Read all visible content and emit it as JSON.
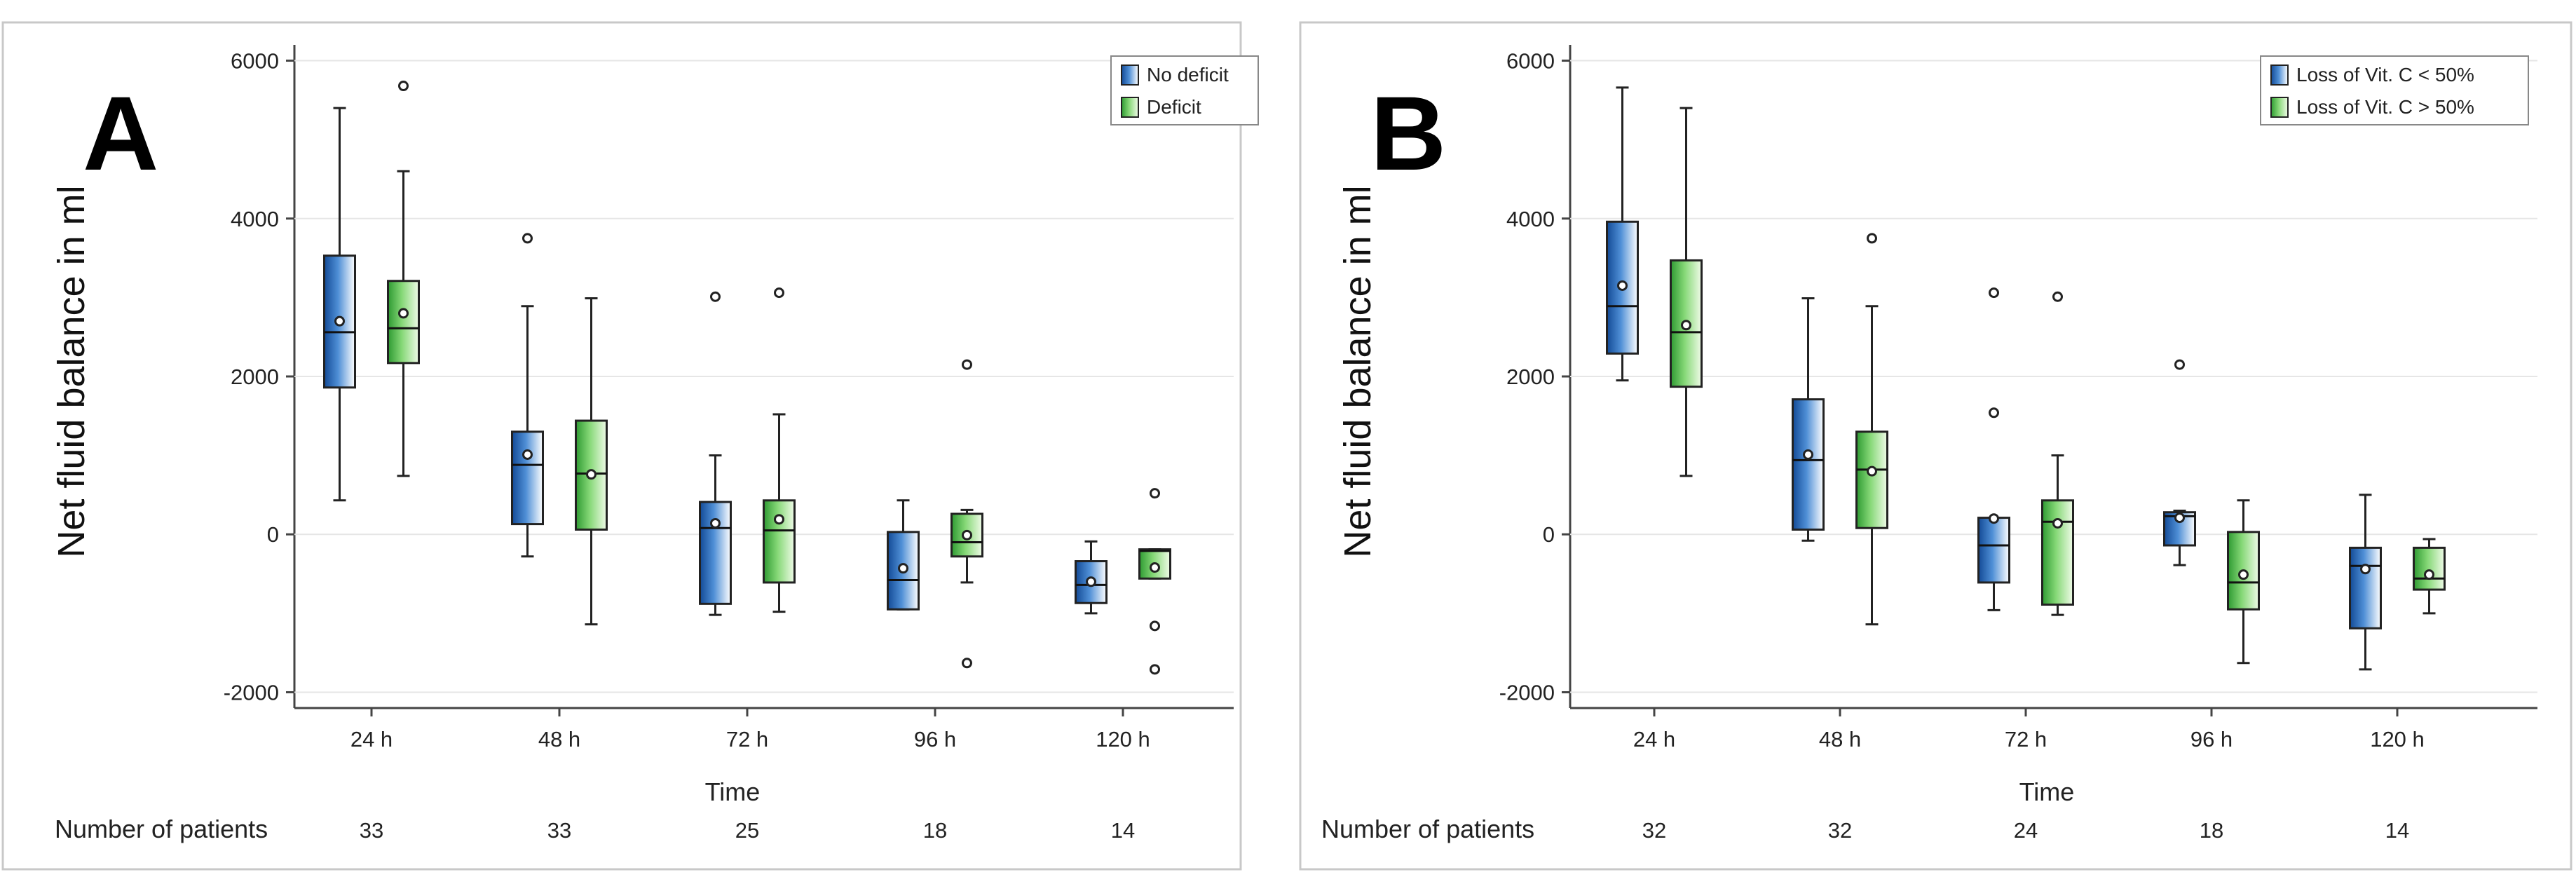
{
  "chart_data": [
    {
      "type": "box",
      "panel_label": "A",
      "xlabel": "Time",
      "ylabel": "Net fluid balance in ml",
      "ylim": [
        -2200,
        6200
      ],
      "yticks": [
        -2000,
        0,
        2000,
        4000,
        6000
      ],
      "categories": [
        "24 h",
        "48 h",
        "72 h",
        "96 h",
        "120 h"
      ],
      "count_label": "Number of patients",
      "counts": [
        33,
        33,
        25,
        18,
        14
      ],
      "grid": true,
      "legend_position": "top-right",
      "series": [
        {
          "name": "No deficit",
          "color": "#1f5fae",
          "boxes": [
            {
              "min": 430,
              "q1": 1860,
              "median": 2560,
              "q3": 3530,
              "max": 5400,
              "mean": 2700,
              "outliers": []
            },
            {
              "min": -280,
              "q1": 130,
              "median": 880,
              "q3": 1300,
              "max": 2890,
              "mean": 1010,
              "outliers": [
                3750
              ]
            },
            {
              "min": -1020,
              "q1": -880,
              "median": 80,
              "q3": 410,
              "max": 1000,
              "mean": 140,
              "outliers": [
                3010
              ]
            },
            {
              "min": -950,
              "q1": -950,
              "median": -580,
              "q3": 30,
              "max": 430,
              "mean": -430,
              "outliers": []
            },
            {
              "min": -1000,
              "q1": -870,
              "median": -640,
              "q3": -340,
              "max": -90,
              "mean": -600,
              "outliers": []
            }
          ]
        },
        {
          "name": "Deficit",
          "color": "#3fae3f",
          "boxes": [
            {
              "min": 740,
              "q1": 2170,
              "median": 2610,
              "q3": 3210,
              "max": 4600,
              "mean": 2800,
              "outliers": [
                5680
              ]
            },
            {
              "min": -1140,
              "q1": 60,
              "median": 770,
              "q3": 1440,
              "max": 2990,
              "mean": 760,
              "outliers": []
            },
            {
              "min": -980,
              "q1": -610,
              "median": 50,
              "q3": 430,
              "max": 1520,
              "mean": 190,
              "outliers": [
                3060
              ]
            },
            {
              "min": -610,
              "q1": -280,
              "median": -100,
              "q3": 260,
              "max": 310,
              "mean": -10,
              "outliers": [
                2150,
                -1630
              ]
            },
            {
              "min": -560,
              "q1": -560,
              "median": -210,
              "q3": -190,
              "max": -190,
              "mean": -420,
              "outliers": [
                520,
                -1160,
                -1710
              ]
            }
          ]
        }
      ]
    },
    {
      "type": "box",
      "panel_label": "B",
      "xlabel": "Time",
      "ylabel": "Net fluid balance in ml",
      "ylim": [
        -2200,
        6200
      ],
      "yticks": [
        -2000,
        0,
        2000,
        4000,
        6000
      ],
      "categories": [
        "24 h",
        "48 h",
        "72 h",
        "96 h",
        "120 h"
      ],
      "count_label": "Number of patients",
      "counts": [
        32,
        32,
        24,
        18,
        14
      ],
      "grid": true,
      "legend_position": "top-right",
      "series": [
        {
          "name": "Loss of Vit. C < 50%",
          "color": "#1f5fae",
          "boxes": [
            {
              "min": 1950,
              "q1": 2290,
              "median": 2890,
              "q3": 3960,
              "max": 5660,
              "mean": 3150,
              "outliers": []
            },
            {
              "min": -80,
              "q1": 60,
              "median": 940,
              "q3": 1710,
              "max": 2990,
              "mean": 1010,
              "outliers": []
            },
            {
              "min": -960,
              "q1": -610,
              "median": -140,
              "q3": 210,
              "max": 210,
              "mean": 200,
              "outliers": [
                3060,
                1540
              ]
            },
            {
              "min": -390,
              "q1": -140,
              "median": 230,
              "q3": 280,
              "max": 300,
              "mean": 210,
              "outliers": [
                2150
              ]
            },
            {
              "min": -1710,
              "q1": -1190,
              "median": -400,
              "q3": -170,
              "max": 500,
              "mean": -440,
              "outliers": []
            }
          ]
        },
        {
          "name": "Loss of Vit. C > 50%",
          "color": "#3fae3f",
          "boxes": [
            {
              "min": 740,
              "q1": 1870,
              "median": 2560,
              "q3": 3470,
              "max": 5400,
              "mean": 2650,
              "outliers": []
            },
            {
              "min": -1140,
              "q1": 80,
              "median": 820,
              "q3": 1300,
              "max": 2890,
              "mean": 800,
              "outliers": [
                3750
              ]
            },
            {
              "min": -1020,
              "q1": -890,
              "median": 160,
              "q3": 430,
              "max": 1000,
              "mean": 140,
              "outliers": [
                3010
              ]
            },
            {
              "min": -1630,
              "q1": -950,
              "median": -610,
              "q3": 30,
              "max": 430,
              "mean": -510,
              "outliers": []
            },
            {
              "min": -1000,
              "q1": -700,
              "median": -560,
              "q3": -170,
              "max": -60,
              "mean": -510,
              "outliers": []
            }
          ]
        }
      ]
    }
  ]
}
